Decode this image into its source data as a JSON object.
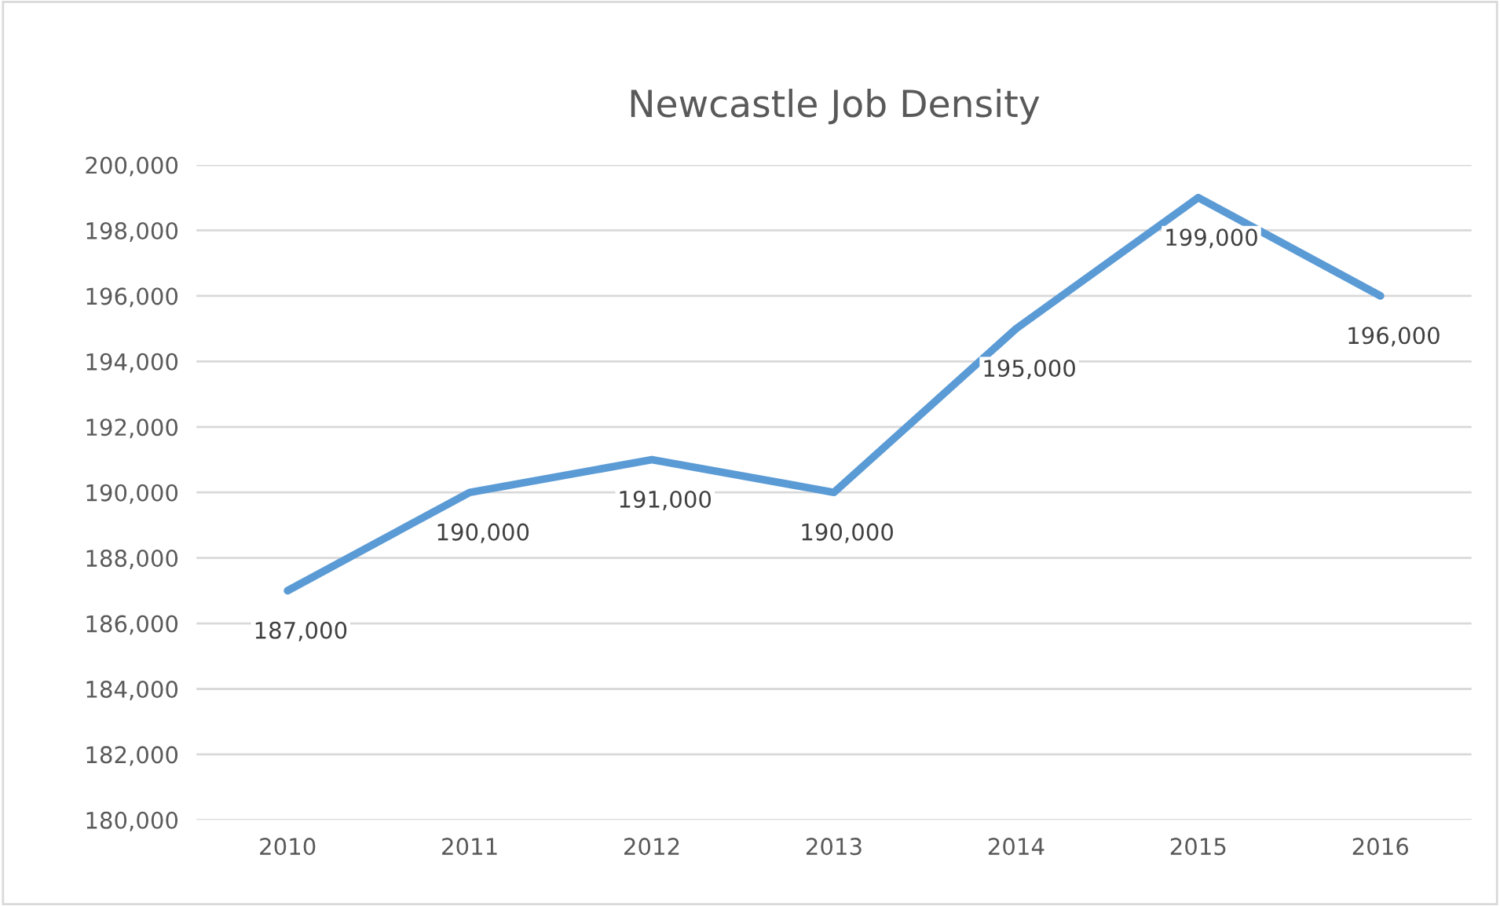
{
  "chart_data": {
    "type": "line",
    "title": "Newcastle Job Density",
    "categories": [
      "2010",
      "2011",
      "2012",
      "2013",
      "2014",
      "2015",
      "2016"
    ],
    "series": [
      {
        "color": "#5b9bd5",
        "values": [
          187000,
          190000,
          191000,
          190000,
          195000,
          199000,
          196000
        ],
        "value_labels": [
          "187,000",
          "190,000",
          "191,000",
          "190,000",
          "195,000",
          "199,000",
          "196,000"
        ]
      }
    ],
    "ylim": [
      180000,
      200000
    ],
    "yticks": [
      {
        "value": 180000,
        "label": "180,000"
      },
      {
        "value": 182000,
        "label": "182,000"
      },
      {
        "value": 184000,
        "label": "184,000"
      },
      {
        "value": 186000,
        "label": "186,000"
      },
      {
        "value": 188000,
        "label": "188,000"
      },
      {
        "value": 190000,
        "label": "190,000"
      },
      {
        "value": 192000,
        "label": "192,000"
      },
      {
        "value": 194000,
        "label": "194,000"
      },
      {
        "value": 196000,
        "label": "196,000"
      },
      {
        "value": 198000,
        "label": "198,000"
      },
      {
        "value": 200000,
        "label": "200,000"
      }
    ],
    "grid": "y",
    "marker": "none",
    "line_style": "solid"
  }
}
